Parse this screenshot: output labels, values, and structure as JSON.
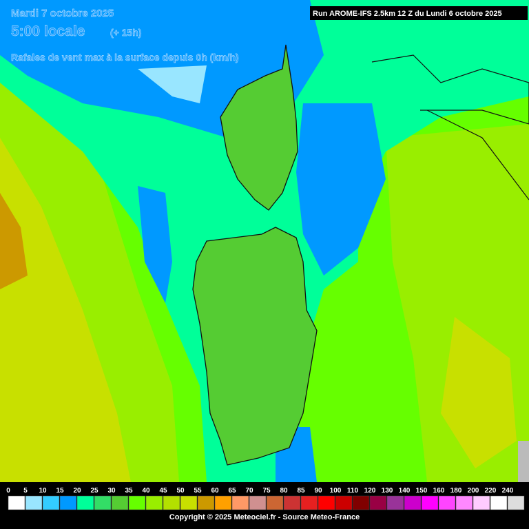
{
  "header": {
    "date": "Mardi 7 octobre 2025",
    "time": "5:00 locale",
    "offset": "(+ 15h)",
    "subtitle": "Rafales de vent max à la surface depuis 0h (km/h)",
    "run": "Run AROME-IFS 2.5km 12 Z du Lundi 6 octobre 2025"
  },
  "legend": {
    "labels": [
      0,
      5,
      10,
      15,
      20,
      25,
      30,
      35,
      40,
      45,
      50,
      55,
      60,
      65,
      70,
      75,
      80,
      85,
      90,
      100,
      110,
      120,
      130,
      140,
      150,
      160,
      180,
      200,
      220,
      240
    ],
    "colors": [
      "#ffffff",
      "#99e6ff",
      "#33ccff",
      "#0099ff",
      "#00ff99",
      "#33dd66",
      "#55cc33",
      "#66ff00",
      "#99ee00",
      "#b3e000",
      "#c8e000",
      "#cc9900",
      "#ffa000",
      "#ff9966",
      "#d09090",
      "#cc6633",
      "#cc3333",
      "#e62020",
      "#ff0000",
      "#cc0000",
      "#800000",
      "#990044",
      "#993399",
      "#cc00cc",
      "#ff00ff",
      "#ff44ff",
      "#ff88ff",
      "#ffccff",
      "#ffffff",
      "#dddddd"
    ]
  },
  "footer": {
    "copyright": "Copyright © 2025 Meteociel.fr - Source Meteo-France"
  }
}
